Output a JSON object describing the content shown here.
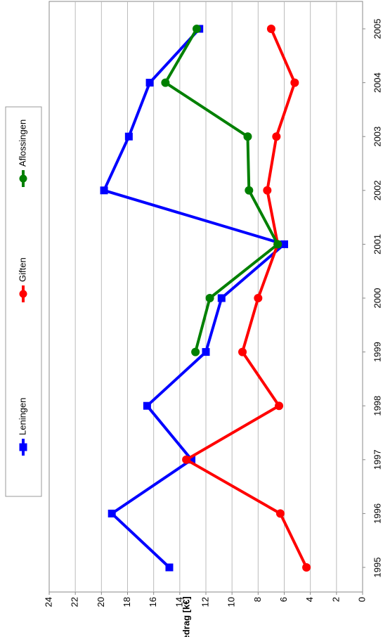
{
  "chart_data": {
    "type": "line",
    "orientation": "rotated-90",
    "categories": [
      "1995",
      "1996",
      "1997",
      "1998",
      "1999",
      "2000",
      "2001",
      "2002",
      "2003",
      "2004",
      "2005"
    ],
    "series": [
      {
        "name": "Leningen",
        "color": "#0000ff",
        "marker": "square",
        "values": [
          14.8,
          19.2,
          13.1,
          16.5,
          12.0,
          10.8,
          6.0,
          19.8,
          17.9,
          16.3,
          12.5
        ]
      },
      {
        "name": "Giften",
        "color": "#ff0000",
        "marker": "circle",
        "values": [
          4.3,
          6.3,
          13.5,
          6.4,
          9.2,
          8.0,
          6.5,
          7.3,
          6.6,
          5.2,
          7.0
        ]
      },
      {
        "name": "Aflossingen",
        "color": "#008000",
        "marker": "circle",
        "values": [
          null,
          null,
          null,
          null,
          12.8,
          11.7,
          6.5,
          8.7,
          8.8,
          15.1,
          12.7
        ]
      }
    ],
    "ylabel": "Bedrag [k€]",
    "ylim": [
      0,
      24
    ],
    "yticks": [
      "0",
      "2",
      "4",
      "6",
      "8",
      "10",
      "12",
      "14",
      "16",
      "18",
      "20",
      "22",
      "24"
    ],
    "grid": true,
    "legend_position": "top"
  }
}
